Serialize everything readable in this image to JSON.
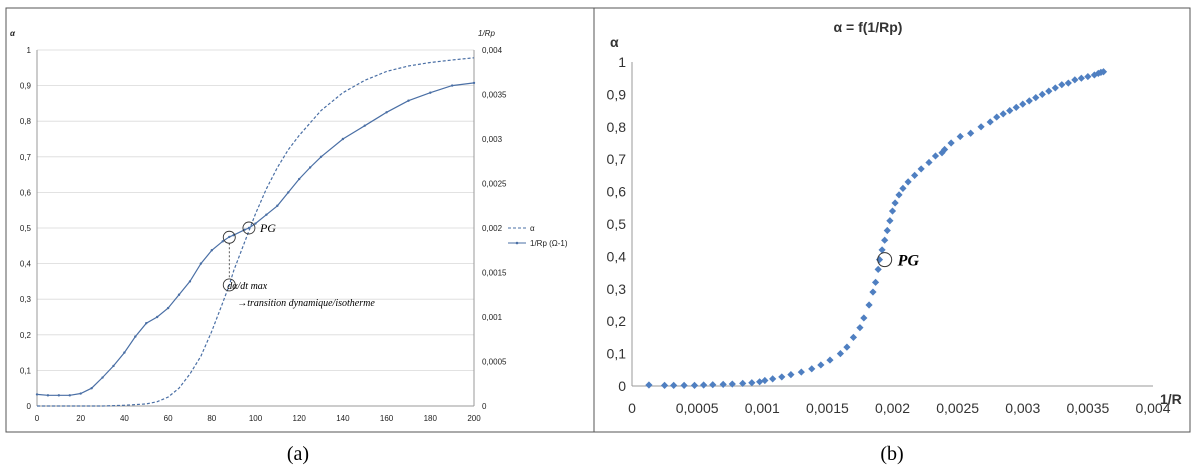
{
  "captions": {
    "a": "(a)",
    "b": "(b)"
  },
  "chart_data": [
    {
      "type": "line",
      "title": "",
      "xlabel": "",
      "ylabel_left": "α",
      "ylabel_right": "1/Rp",
      "xlim": [
        0,
        200
      ],
      "ylim_left": [
        0,
        1
      ],
      "ylim_right": [
        0,
        0.004
      ],
      "x_ticks": [
        "0",
        "20",
        "40",
        "60",
        "80",
        "100",
        "120",
        "140",
        "160",
        "180",
        "200"
      ],
      "y_ticks_left": [
        "0",
        "0,1",
        "0,2",
        "0,3",
        "0,4",
        "0,5",
        "0,6",
        "0,7",
        "0,8",
        "0,9",
        "1"
      ],
      "y_ticks_right": [
        "0",
        "0,0005",
        "0,001",
        "0,0015",
        "0,002",
        "0,0025",
        "0,003",
        "0,0035",
        "0,004"
      ],
      "grid": "horizontal",
      "legend_position": "right",
      "series": [
        {
          "name": "α",
          "axis": "left",
          "style": "dashed",
          "color": "#4a6fa5",
          "x": [
            0,
            20,
            30,
            40,
            50,
            55,
            60,
            65,
            70,
            75,
            80,
            85,
            88,
            90,
            95,
            100,
            105,
            110,
            115,
            120,
            130,
            140,
            150,
            160,
            170,
            180,
            190,
            200
          ],
          "y": [
            0,
            0,
            0,
            0.002,
            0.006,
            0.012,
            0.025,
            0.05,
            0.09,
            0.14,
            0.21,
            0.29,
            0.34,
            0.38,
            0.46,
            0.54,
            0.61,
            0.67,
            0.72,
            0.76,
            0.83,
            0.88,
            0.915,
            0.94,
            0.955,
            0.965,
            0.972,
            0.978
          ]
        },
        {
          "name": "1/Rp (Ω-1)",
          "axis": "right",
          "style": "solid-markers",
          "color": "#4a6fa5",
          "x": [
            0,
            5,
            10,
            15,
            20,
            25,
            30,
            35,
            40,
            45,
            50,
            55,
            60,
            65,
            70,
            75,
            80,
            85,
            88,
            90,
            95,
            97,
            100,
            105,
            110,
            115,
            120,
            125,
            130,
            140,
            150,
            160,
            170,
            180,
            190,
            200
          ],
          "y": [
            0.00013,
            0.00012,
            0.00012,
            0.00012,
            0.00014,
            0.0002,
            0.00032,
            0.00045,
            0.0006,
            0.00078,
            0.00093,
            0.001,
            0.0011,
            0.00125,
            0.0014,
            0.0016,
            0.00175,
            0.00185,
            0.0019,
            0.00192,
            0.00198,
            0.002,
            0.00205,
            0.00215,
            0.00225,
            0.0024,
            0.00255,
            0.00268,
            0.0028,
            0.003,
            0.00315,
            0.0033,
            0.00343,
            0.00352,
            0.0036,
            0.00363
          ]
        }
      ],
      "annotations": [
        {
          "text": "PG",
          "x": 97,
          "y": 0.5
        },
        {
          "text": "dα/dt max",
          "x": 88,
          "y": 0.34
        },
        {
          "text": "→transition dynamique/isotherme"
        }
      ]
    },
    {
      "type": "scatter",
      "title": "α = f(1/Rp)",
      "xlabel": "1/R",
      "ylabel": "α",
      "xlim": [
        0,
        0.004
      ],
      "ylim": [
        0,
        1
      ],
      "x_ticks": [
        "0",
        "0,0005",
        "0,001",
        "0,0015",
        "0,002",
        "0,0025",
        "0,003",
        "0,0035",
        "0,004"
      ],
      "y_ticks": [
        "0",
        "0,1",
        "0,2",
        "0,3",
        "0,4",
        "0,5",
        "0,6",
        "0,7",
        "0,8",
        "0,9",
        "1"
      ],
      "grid": "none",
      "marker": "diamond",
      "color": "#4f7fc1",
      "x": [
        0.00013,
        0.00025,
        0.00032,
        0.0004,
        0.00048,
        0.00055,
        0.00062,
        0.0007,
        0.00077,
        0.00085,
        0.00092,
        0.00098,
        0.00102,
        0.00108,
        0.00115,
        0.00122,
        0.0013,
        0.00138,
        0.00145,
        0.00152,
        0.0016,
        0.00165,
        0.0017,
        0.00175,
        0.00178,
        0.00182,
        0.00185,
        0.00187,
        0.00189,
        0.0019,
        0.00192,
        0.00194,
        0.00196,
        0.00198,
        0.002,
        0.00202,
        0.00205,
        0.00208,
        0.00212,
        0.00217,
        0.00222,
        0.00228,
        0.00233,
        0.00238,
        0.0024,
        0.00245,
        0.00252,
        0.0026,
        0.00268,
        0.00275,
        0.0028,
        0.00285,
        0.0029,
        0.00295,
        0.003,
        0.00305,
        0.0031,
        0.00315,
        0.0032,
        0.00325,
        0.0033,
        0.00335,
        0.0034,
        0.00345,
        0.0035,
        0.00355,
        0.00358,
        0.0036,
        0.00362
      ],
      "y": [
        0.003,
        0.002,
        0.002,
        0.002,
        0.002,
        0.003,
        0.004,
        0.005,
        0.006,
        0.008,
        0.01,
        0.013,
        0.017,
        0.022,
        0.028,
        0.035,
        0.043,
        0.053,
        0.065,
        0.08,
        0.1,
        0.12,
        0.15,
        0.18,
        0.21,
        0.25,
        0.29,
        0.32,
        0.36,
        0.39,
        0.42,
        0.45,
        0.48,
        0.51,
        0.54,
        0.565,
        0.59,
        0.61,
        0.63,
        0.65,
        0.67,
        0.69,
        0.71,
        0.72,
        0.73,
        0.75,
        0.77,
        0.78,
        0.8,
        0.815,
        0.83,
        0.84,
        0.85,
        0.86,
        0.87,
        0.88,
        0.89,
        0.9,
        0.91,
        0.92,
        0.93,
        0.935,
        0.945,
        0.95,
        0.955,
        0.96,
        0.965,
        0.968,
        0.97
      ],
      "annotations": [
        {
          "text": "PG",
          "x": 0.00194,
          "y": 0.39
        }
      ]
    }
  ]
}
